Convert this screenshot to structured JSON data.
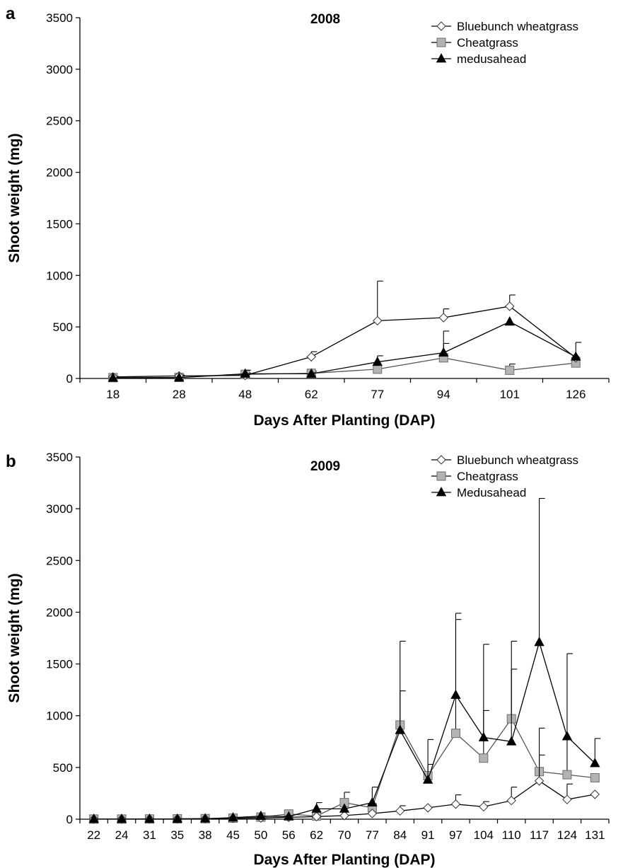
{
  "chart_data": [
    {
      "type": "line",
      "panel_label": "a",
      "title": "2008",
      "xlabel": "Days After Planting (DAP)",
      "ylabel": "Shoot weight (mg)",
      "ylim": [
        0,
        3500
      ],
      "yticks": [
        0,
        500,
        1000,
        1500,
        2000,
        2500,
        3000,
        3500
      ],
      "categories": [
        "18",
        "28",
        "48",
        "62",
        "77",
        "94",
        "101",
        "126"
      ],
      "grid": false,
      "legend_position": "top-right",
      "series": [
        {
          "name": "Bluebunch wheatgrass",
          "marker": "diamond-open",
          "color": "#000000",
          "values": [
            15,
            25,
            30,
            210,
            560,
            590,
            700,
            200
          ],
          "errors": [
            5,
            8,
            10,
            50,
            385,
            85,
            110,
            0
          ]
        },
        {
          "name": "Cheatgrass",
          "marker": "square-gray",
          "color": "#aaaaaa",
          "values": [
            8,
            10,
            40,
            50,
            90,
            200,
            80,
            150
          ],
          "errors": [
            3,
            4,
            15,
            20,
            0,
            140,
            60,
            0
          ]
        },
        {
          "name": "medusahead",
          "marker": "triangle-filled",
          "color": "#000000",
          "values": [
            5,
            8,
            45,
            45,
            160,
            250,
            550,
            210
          ],
          "errors": [
            2,
            3,
            35,
            10,
            60,
            210,
            0,
            140
          ]
        }
      ]
    },
    {
      "type": "line",
      "panel_label": "b",
      "title": "2009",
      "xlabel": "Days After Planting (DAP)",
      "ylabel": "Shoot weight (mg)",
      "ylim": [
        0,
        3500
      ],
      "yticks": [
        0,
        500,
        1000,
        1500,
        2000,
        2500,
        3000,
        3500
      ],
      "categories": [
        "22",
        "24",
        "31",
        "35",
        "38",
        "45",
        "50",
        "56",
        "62",
        "70",
        "77",
        "84",
        "91",
        "97",
        "104",
        "110",
        "117",
        "124",
        "131"
      ],
      "grid": false,
      "legend_position": "top-right",
      "series": [
        {
          "name": "Bluebunch wheatgrass",
          "marker": "diamond-open",
          "color": "#000000",
          "values": [
            1,
            1,
            2,
            3,
            4,
            8,
            12,
            18,
            25,
            35,
            55,
            80,
            110,
            145,
            120,
            180,
            370,
            190,
            240
          ],
          "errors": [
            0,
            0,
            0,
            0,
            0,
            0,
            0,
            0,
            0,
            0,
            0,
            50,
            0,
            90,
            50,
            130,
            250,
            150,
            0
          ]
        },
        {
          "name": "Cheatgrass",
          "marker": "square-gray",
          "color": "#aaaaaa",
          "values": [
            1,
            1,
            2,
            3,
            5,
            10,
            20,
            50,
            30,
            160,
            110,
            910,
            420,
            830,
            590,
            970,
            460,
            430,
            400
          ],
          "errors": [
            0,
            0,
            0,
            0,
            0,
            0,
            0,
            0,
            0,
            100,
            0,
            810,
            110,
            1100,
            1100,
            750,
            420,
            1170,
            0
          ]
        },
        {
          "name": "Medusahead",
          "marker": "triangle-filled",
          "color": "#000000",
          "values": [
            1,
            1,
            2,
            3,
            5,
            15,
            30,
            25,
            100,
            100,
            160,
            860,
            380,
            1200,
            790,
            750,
            1710,
            800,
            540
          ],
          "errors": [
            0,
            0,
            0,
            0,
            0,
            0,
            0,
            0,
            60,
            0,
            150,
            380,
            390,
            790,
            260,
            700,
            1390,
            0,
            240
          ]
        }
      ]
    }
  ]
}
